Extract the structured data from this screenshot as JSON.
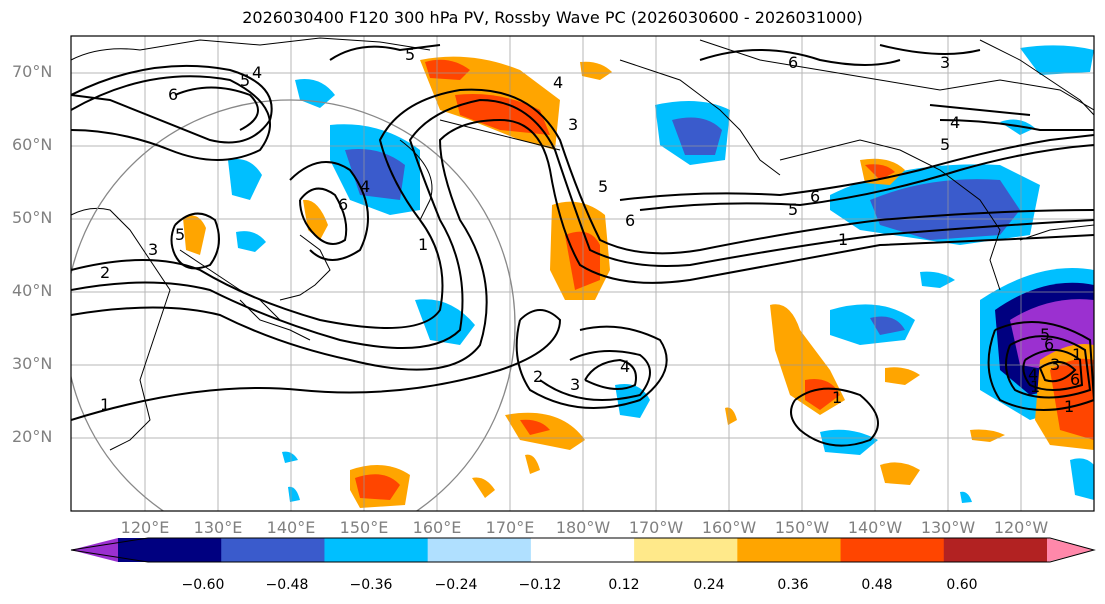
{
  "title": "2026030400 F120 300 hPa PV, Rossby Wave PC (2026030600 - 2026031000)",
  "lat_labels": [
    "70°N",
    "60°N",
    "50°N",
    "40°N",
    "30°N",
    "20°N"
  ],
  "lon_labels": [
    "120°E",
    "130°E",
    "140°E",
    "150°E",
    "160°E",
    "170°E",
    "180°W",
    "170°W",
    "160°W",
    "150°W",
    "140°W",
    "130°W",
    "120°W"
  ],
  "contour_labels": [
    "5",
    "4",
    "5",
    "6",
    "4",
    "3",
    "6",
    "5",
    "1",
    "2",
    "3",
    "5",
    "4",
    "6",
    "4",
    "2",
    "3",
    "6",
    "3",
    "6",
    "4",
    "5",
    "1",
    "5",
    "6",
    "1",
    "1",
    "4",
    "3",
    "6",
    "5",
    "1",
    "1",
    "1"
  ],
  "colorbar": {
    "ticks": [
      "−0.60",
      "−0.48",
      "−0.36",
      "−0.24",
      "−0.12",
      "0.12",
      "0.24",
      "0.36",
      "0.48",
      "0.60"
    ],
    "colors": [
      "#9b30d0",
      "#000080",
      "#3a5bcc",
      "#00bfff",
      "#b0e0ff",
      "#ffffff",
      "#ffe98a",
      "#ffa500",
      "#ff4500",
      "#b22222",
      "#ff88aa"
    ]
  }
}
